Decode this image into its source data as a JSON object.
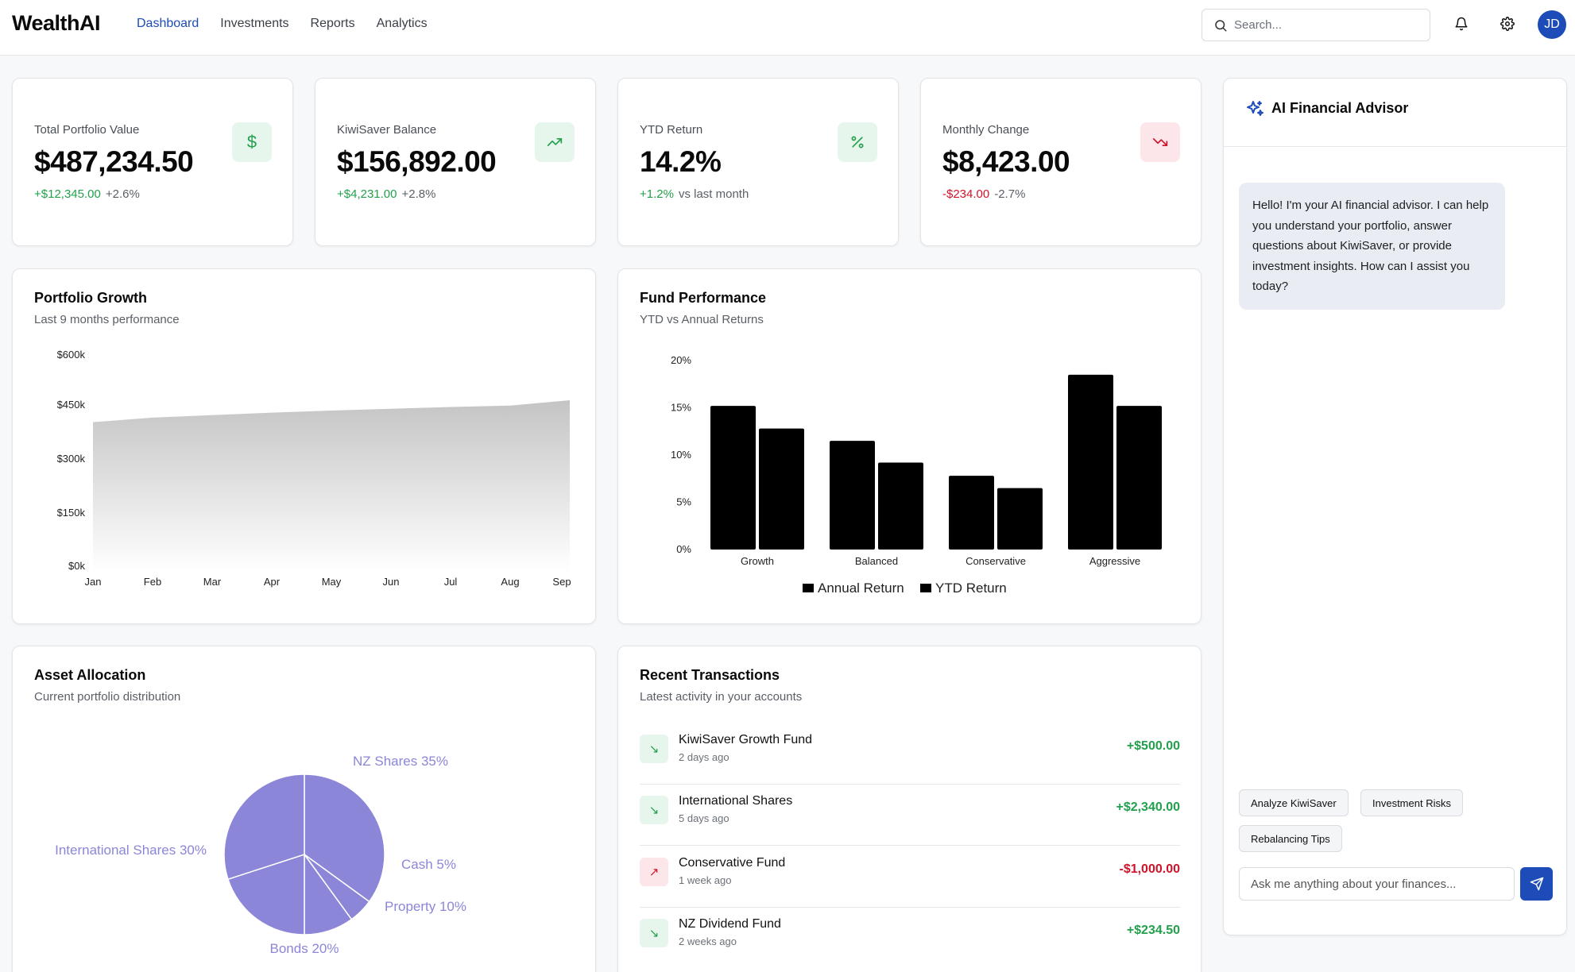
{
  "header": {
    "logo": "WealthAI",
    "nav": [
      "Dashboard",
      "Investments",
      "Reports",
      "Analytics"
    ],
    "active_nav": "Dashboard",
    "search_placeholder": "Search...",
    "avatar_initials": "JD",
    "accent_color": "#1d4bb8"
  },
  "stats": [
    {
      "label": "Total Portfolio Value",
      "value": "$487,234.50",
      "change": "+$12,345.00",
      "pct": "+2.6%",
      "trend": "positive",
      "icon": "dollar-icon"
    },
    {
      "label": "KiwiSaver Balance",
      "value": "$156,892.00",
      "change": "+$4,231.00",
      "pct": "+2.8%",
      "trend": "positive",
      "icon": "trending-up-icon"
    },
    {
      "label": "YTD Return",
      "value": "14.2%",
      "change": "+1.2%",
      "pct": "vs last month",
      "trend": "positive",
      "icon": "percent-icon"
    },
    {
      "label": "Monthly Change",
      "value": "$8,423.00",
      "change": "-$234.00",
      "pct": "-2.7%",
      "trend": "negative",
      "icon": "trending-down-icon"
    }
  ],
  "portfolio_growth": {
    "title": "Portfolio Growth",
    "subtitle": "Last 9 months performance"
  },
  "fund_performance": {
    "title": "Fund Performance",
    "subtitle": "YTD vs Annual Returns"
  },
  "asset_allocation": {
    "title": "Asset Allocation",
    "subtitle": "Current portfolio distribution"
  },
  "chart_data": [
    {
      "type": "area",
      "x": [
        "Jan",
        "Feb",
        "Mar",
        "Apr",
        "May",
        "Jun",
        "Jul",
        "Aug",
        "Sep"
      ],
      "values": [
        425000,
        438000,
        445000,
        452000,
        458000,
        463000,
        468000,
        472000,
        487234
      ],
      "ylim": [
        0,
        600000
      ],
      "yticks": [
        "$0k",
        "$150k",
        "$300k",
        "$450k",
        "$600k"
      ],
      "grid": false
    },
    {
      "type": "bar",
      "categories": [
        "Growth",
        "Balanced",
        "Conservative",
        "Aggressive"
      ],
      "series": [
        {
          "name": "Annual Return",
          "values": [
            15.2,
            11.5,
            7.8,
            18.5
          ]
        },
        {
          "name": "YTD Return",
          "values": [
            12.8,
            9.2,
            6.5,
            15.2
          ]
        }
      ],
      "ylim": [
        0,
        20
      ],
      "yticks": [
        "0%",
        "5%",
        "10%",
        "15%",
        "20%"
      ],
      "legend": "bottom"
    },
    {
      "type": "pie",
      "slices": [
        {
          "label": "NZ Shares 35%",
          "value": 35
        },
        {
          "label": "Cash 5%",
          "value": 5
        },
        {
          "label": "Property 10%",
          "value": 10
        },
        {
          "label": "Bonds 20%",
          "value": 20
        },
        {
          "label": "International Shares 30%",
          "value": 30
        }
      ],
      "color": "#8b86d8"
    }
  ],
  "transactions": {
    "title": "Recent Transactions",
    "subtitle": "Latest activity in your accounts",
    "items": [
      {
        "name": "KiwiSaver Growth Fund",
        "time": "2 days ago",
        "amount": "+$500.00",
        "type": "in"
      },
      {
        "name": "International Shares",
        "time": "5 days ago",
        "amount": "+$2,340.00",
        "type": "in"
      },
      {
        "name": "Conservative Fund",
        "time": "1 week ago",
        "amount": "-$1,000.00",
        "type": "out"
      },
      {
        "name": "NZ Dividend Fund",
        "time": "2 weeks ago",
        "amount": "+$234.50",
        "type": "in"
      }
    ]
  },
  "advisor": {
    "title": "AI Financial Advisor",
    "message": "Hello! I'm your AI financial advisor. I can help you understand your portfolio, answer questions about KiwiSaver, or provide investment insights. How can I assist you today?",
    "chips": [
      "Analyze KiwiSaver",
      "Investment Risks",
      "Rebalancing Tips"
    ],
    "input_placeholder": "Ask me anything about your finances..."
  }
}
